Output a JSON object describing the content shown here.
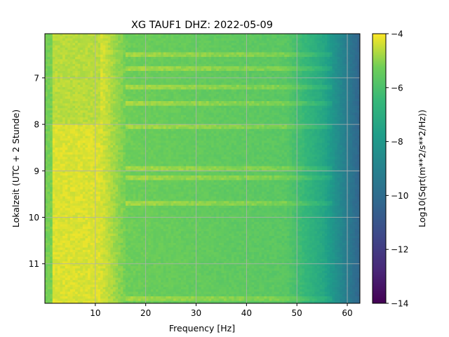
{
  "chart_data": {
    "type": "heatmap",
    "title": "XG TAUF1  DHZ: 2022-05-09",
    "xlabel": "Frequency [Hz]",
    "ylabel": "Lokalzeit (UTC + 2 Stunde)",
    "xlim": [
      0,
      62.5
    ],
    "ylim": [
      11.85,
      6.05
    ],
    "x_ticks": [
      "10",
      "20",
      "30",
      "40",
      "50",
      "60"
    ],
    "y_ticks": [
      "7",
      "8",
      "9",
      "10",
      "11"
    ],
    "grid": true,
    "colorbar": {
      "label": "Log10(Sqrt(m**2/s**2/Hz))",
      "range": [
        -14,
        -4
      ],
      "ticks": [
        "−4",
        "−6",
        "−8",
        "−10",
        "−12",
        "−14"
      ],
      "colormap": "viridis"
    },
    "values_description_levels": {
      "low_freq_band_0_12Hz": -4.4,
      "mid_band_15_45Hz": -5.3,
      "high_band_55_62Hz": -8.5
    },
    "bright_time_bands_hours": [
      6.5,
      6.8,
      7.2,
      7.55,
      8.05,
      8.95,
      9.15,
      9.7,
      11.75
    ]
  }
}
